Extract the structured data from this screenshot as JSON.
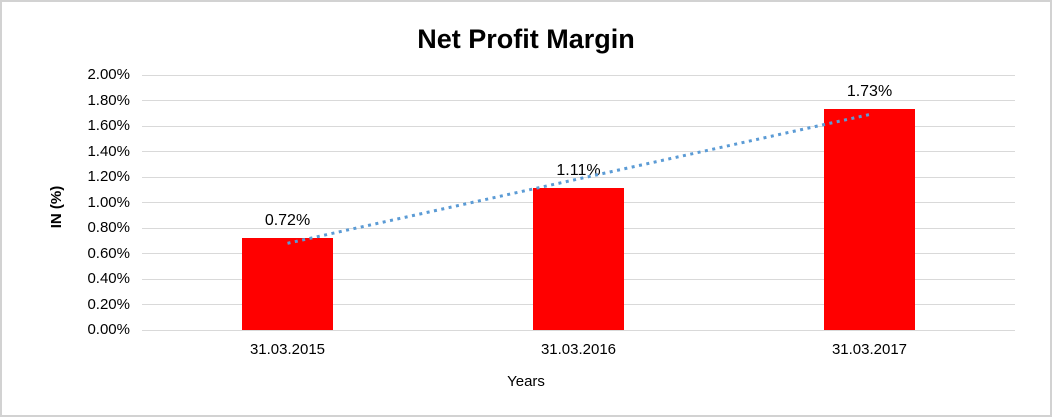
{
  "window": {
    "background_color": "#ffffff",
    "frame_border_color": "#d2d2d2"
  },
  "chart_data": {
    "type": "bar",
    "title": "Net Profit Margin",
    "xlabel": "Years",
    "ylabel": "IN (%)",
    "categories": [
      "31.03.2015",
      "31.03.2016",
      "31.03.2017"
    ],
    "values": [
      0.72,
      1.11,
      1.73
    ],
    "data_labels": [
      "0.72%",
      "1.11%",
      "1.73%"
    ],
    "ylim": [
      0,
      2
    ],
    "ytick_step": 0.2,
    "ytick_labels": [
      "0.00%",
      "0.20%",
      "0.40%",
      "0.60%",
      "0.80%",
      "1.00%",
      "1.20%",
      "1.40%",
      "1.60%",
      "1.80%",
      "2.00%"
    ],
    "grid": true,
    "legend_position": "none",
    "bar_color": "#ff0000",
    "grid_color": "#d9d9d9",
    "text_color": "#000000",
    "trendline": {
      "type": "linear",
      "style": "dotted",
      "color": "#5b9bd5",
      "start_value": 0.68,
      "end_value": 1.69
    }
  }
}
